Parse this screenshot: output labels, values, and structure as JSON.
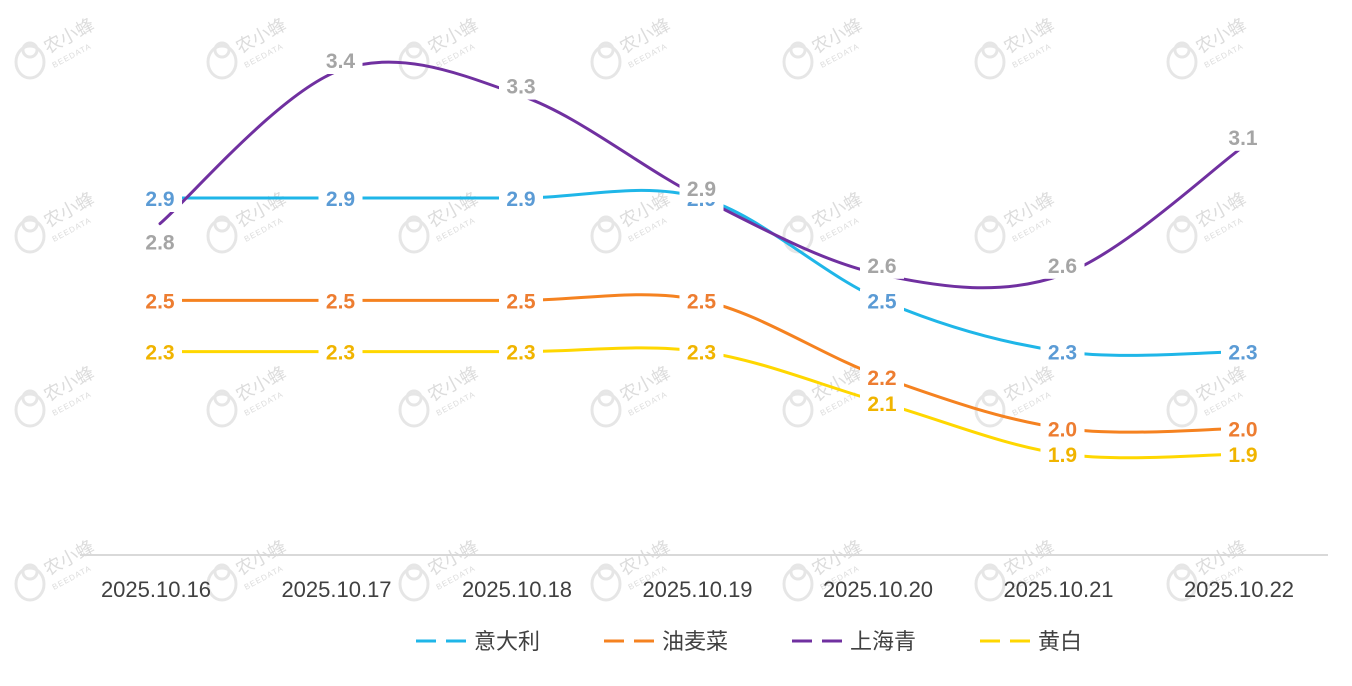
{
  "chart_data": {
    "type": "line",
    "title": "",
    "xlabel": "",
    "ylabel": "",
    "ylim": [
      1.0,
      3.6
    ],
    "grid": false,
    "legend_position": "bottom-center",
    "categories": [
      "2025.10.16",
      "2025.10.17",
      "2025.10.18",
      "2025.10.19",
      "2025.10.20",
      "2025.10.21",
      "2025.10.22"
    ],
    "series": [
      {
        "name": "意大利",
        "color": "#1fb6e8",
        "label_color": "#5b9bd5",
        "values": [
          2.9,
          2.9,
          2.9,
          2.9,
          2.5,
          2.3,
          2.3
        ],
        "labels": [
          "2.9",
          "2.9",
          "2.9",
          "2.9",
          "2.5",
          "2.3",
          "2.3"
        ]
      },
      {
        "name": "油麦菜",
        "color": "#f58220",
        "label_color": "#ed7d31",
        "values": [
          2.5,
          2.5,
          2.5,
          2.5,
          2.2,
          2.0,
          2.0
        ],
        "labels": [
          "2.5",
          "2.5",
          "2.5",
          "2.5",
          "2.2",
          "2.0",
          "2.0"
        ]
      },
      {
        "name": "上海青",
        "color": "#7030a0",
        "label_color": "#a5a5a5",
        "values": [
          2.8,
          3.4,
          3.3,
          2.9,
          2.6,
          2.6,
          3.1
        ],
        "labels": [
          "2.8",
          "3.4",
          "3.3",
          "2.9",
          "2.6",
          "2.6",
          "3.1"
        ]
      },
      {
        "name": "黄白",
        "color": "#ffd700",
        "label_color": "#f0b400",
        "values": [
          2.3,
          2.3,
          2.3,
          2.3,
          2.1,
          1.9,
          1.9
        ],
        "labels": [
          "2.3",
          "2.3",
          "2.3",
          "2.3",
          "2.1",
          "1.9",
          "1.9"
        ]
      }
    ]
  },
  "watermark": {
    "text": "农小蜂",
    "sub": "BEEDATA"
  }
}
